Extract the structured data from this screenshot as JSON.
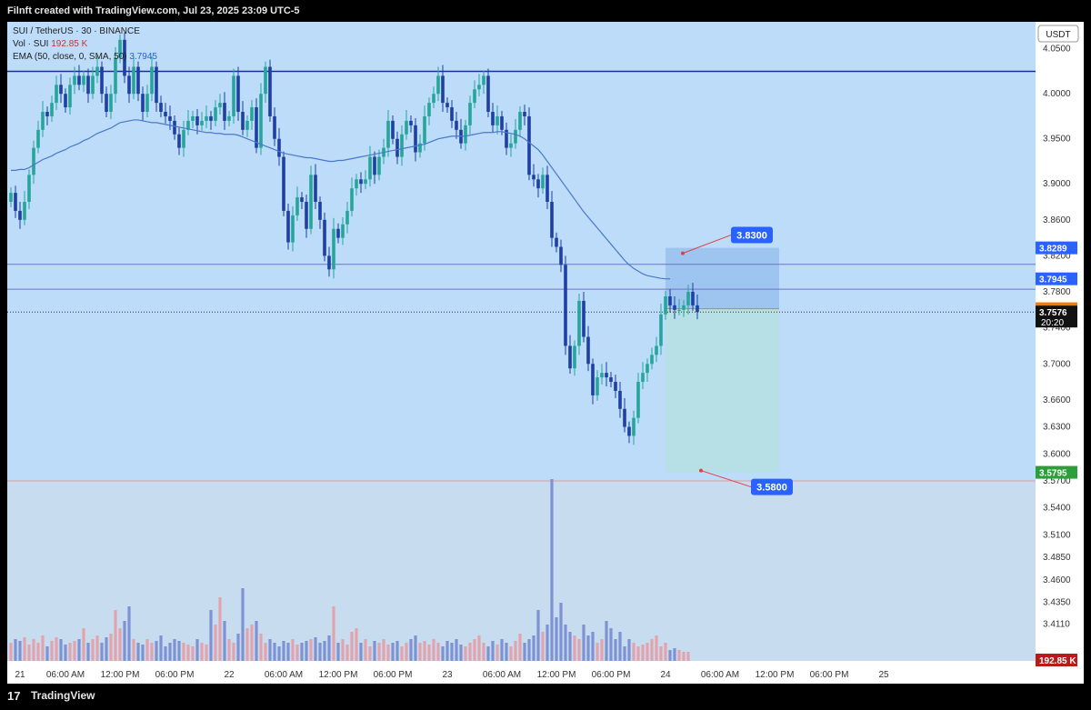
{
  "header": {
    "text": "Filnft created with TradingView.com, Jul 23, 2025 23:09 UTC-5"
  },
  "footer": {
    "brand": "TradingView",
    "logo_text": "17"
  },
  "legend": {
    "symbol": "SUI / TetherUS · 30 · BINANCE",
    "vol_label": "Vol · SUI",
    "vol_value": "192.85 K",
    "ema_label": "EMA (50, close, 0, SMA, 50)",
    "ema_value": "3.7945"
  },
  "colors": {
    "background_upper": "#bcdcfa",
    "background_lower": "#c8dcef",
    "candle_up": "#26a69a",
    "candle_down": "#1e3fa3",
    "ema": "#4a78c8",
    "vol_up": "#e2a3ad",
    "vol_down": "#7d93d4",
    "resistance": "#1a2f8a",
    "target_zone": "#9ec4f0",
    "stop_zone": "#b7dfe6"
  },
  "chart_data": {
    "type": "candlestick",
    "currency_label": "USDT",
    "ylim": [
      3.37,
      4.08
    ],
    "price_ticks": [
      4.05,
      4.0,
      3.95,
      3.9,
      3.86,
      3.82,
      3.78,
      3.74,
      3.7,
      3.66,
      3.63,
      3.6,
      3.57,
      3.54,
      3.51,
      3.485,
      3.46,
      3.435,
      3.411
    ],
    "price_tick_labels": [
      "4.0500",
      "4.0000",
      "3.9500",
      "3.9000",
      "3.8600",
      "3.8200",
      "3.7800",
      "3.7400",
      "3.7000",
      "3.6600",
      "3.6300",
      "3.6000",
      "3.5700",
      "3.5400",
      "3.5100",
      "3.4850",
      "3.4600",
      "3.4350",
      "3.4110"
    ],
    "time_labels": [
      "21",
      "06:00 AM",
      "12:00 PM",
      "06:00 PM",
      "22",
      "06:00 AM",
      "12:00 PM",
      "06:00 PM",
      "23",
      "06:00 AM",
      "12:00 PM",
      "06:00 PM",
      "24",
      "06:00 AM",
      "12:00 PM",
      "06:00 PM",
      "25"
    ],
    "time_label_index": [
      2,
      12,
      24,
      36,
      48,
      60,
      72,
      84,
      96,
      108,
      120,
      132,
      144,
      156,
      168,
      180,
      192
    ],
    "resistance_level": 4.025,
    "horizontal_lines": [
      3.8106,
      3.7829
    ],
    "current_price_line": 3.7576,
    "position": {
      "entry": 3.7613,
      "target": 3.8289,
      "stop": 3.5795,
      "target_callout": "3.8300",
      "stop_callout": "3.5800",
      "start_index": 144,
      "end_index": 169
    },
    "axis_badges": [
      {
        "label": "3.8289",
        "price": 3.8289,
        "color": "#2962ff"
      },
      {
        "label": "3.7945",
        "price": 3.7945,
        "color": "#2962ff"
      },
      {
        "label": "3.7613",
        "price": 3.7613,
        "color": "#f57c00"
      },
      {
        "label": "3.7576",
        "price": 3.7576,
        "color": "#111111",
        "sub": "20:20"
      },
      {
        "label": "3.5795",
        "price": 3.5795,
        "color": "#2e9e3b"
      },
      {
        "label": "192.85 K",
        "price": 3.371,
        "color": "#b71c1c"
      }
    ],
    "closes": [
      3.89,
      3.87,
      3.86,
      3.88,
      3.91,
      3.94,
      3.96,
      3.98,
      3.975,
      3.99,
      4.01,
      4.0,
      3.985,
      4.01,
      4.02,
      4.01,
      4.02,
      4.0,
      4.02,
      4.03,
      4.0,
      3.98,
      4.0,
      4.04,
      4.06,
      4.02,
      4.0,
      4.03,
      4.0,
      3.98,
      4.0,
      4.03,
      3.99,
      3.98,
      3.975,
      3.97,
      3.955,
      3.94,
      3.96,
      3.97,
      3.975,
      3.965,
      3.97,
      3.975,
      3.97,
      3.985,
      3.99,
      3.97,
      3.975,
      4.02,
      3.98,
      3.96,
      3.97,
      3.985,
      3.94,
      4.0,
      4.03,
      3.975,
      3.95,
      3.93,
      3.87,
      3.835,
      3.865,
      3.885,
      3.88,
      3.85,
      3.91,
      3.88,
      3.86,
      3.82,
      3.805,
      3.85,
      3.84,
      3.855,
      3.87,
      3.895,
      3.905,
      3.9,
      3.905,
      3.93,
      3.91,
      3.93,
      3.94,
      3.97,
      3.95,
      3.93,
      3.955,
      3.97,
      3.965,
      3.935,
      3.945,
      3.975,
      3.99,
      4.0,
      4.02,
      3.99,
      3.985,
      3.97,
      3.96,
      3.945,
      3.965,
      3.99,
      4.005,
      4.01,
      4.02,
      3.98,
      3.965,
      3.975,
      3.96,
      3.94,
      3.945,
      3.96,
      3.98,
      3.975,
      3.91,
      3.905,
      3.895,
      3.91,
      3.88,
      3.84,
      3.83,
      3.81,
      3.72,
      3.695,
      3.72,
      3.77,
      3.73,
      3.7,
      3.665,
      3.685,
      3.69,
      3.685,
      3.68,
      3.67,
      3.65,
      3.63,
      3.62,
      3.64,
      3.68,
      3.69,
      3.7,
      3.71,
      3.72,
      3.755,
      3.775,
      3.765,
      3.76,
      3.76,
      3.765,
      3.78,
      3.765,
      3.7576
    ],
    "volume_max": 1.0,
    "volumes": [
      0.1,
      0.12,
      0.11,
      0.13,
      0.09,
      0.12,
      0.1,
      0.14,
      0.08,
      0.11,
      0.13,
      0.12,
      0.09,
      0.1,
      0.11,
      0.12,
      0.18,
      0.1,
      0.12,
      0.14,
      0.1,
      0.13,
      0.15,
      0.28,
      0.18,
      0.22,
      0.3,
      0.12,
      0.1,
      0.09,
      0.12,
      0.1,
      0.11,
      0.14,
      0.08,
      0.1,
      0.12,
      0.11,
      0.1,
      0.09,
      0.08,
      0.12,
      0.1,
      0.09,
      0.28,
      0.2,
      0.35,
      0.22,
      0.12,
      0.1,
      0.15,
      0.4,
      0.18,
      0.2,
      0.22,
      0.15,
      0.1,
      0.12,
      0.1,
      0.08,
      0.11,
      0.1,
      0.12,
      0.09,
      0.1,
      0.11,
      0.12,
      0.13,
      0.1,
      0.11,
      0.14,
      0.3,
      0.1,
      0.12,
      0.09,
      0.16,
      0.18,
      0.1,
      0.12,
      0.08,
      0.11,
      0.1,
      0.12,
      0.09,
      0.1,
      0.11,
      0.08,
      0.1,
      0.12,
      0.14,
      0.1,
      0.11,
      0.09,
      0.12,
      0.1,
      0.08,
      0.11,
      0.1,
      0.12,
      0.09,
      0.08,
      0.1,
      0.12,
      0.14,
      0.1,
      0.08,
      0.11,
      0.09,
      0.12,
      0.1,
      0.08,
      0.11,
      0.15,
      0.1,
      0.12,
      0.14,
      0.28,
      0.16,
      0.2,
      1.0,
      0.24,
      0.32,
      0.2,
      0.16,
      0.14,
      0.12,
      0.2,
      0.14,
      0.16,
      0.1,
      0.12,
      0.22,
      0.18,
      0.12,
      0.16,
      0.08,
      0.12,
      0.1,
      0.08,
      0.09,
      0.1,
      0.12,
      0.14,
      0.08,
      0.1,
      0.06,
      0.07,
      0.06,
      0.05,
      0.05
    ],
    "ema_values": [
      3.915,
      3.915,
      3.916,
      3.916,
      3.918,
      3.921,
      3.924,
      3.927,
      3.929,
      3.931,
      3.934,
      3.936,
      3.938,
      3.941,
      3.943,
      3.945,
      3.948,
      3.95,
      3.953,
      3.956,
      3.958,
      3.96,
      3.962,
      3.965,
      3.968,
      3.969,
      3.97,
      3.971,
      3.971,
      3.97,
      3.969,
      3.968,
      3.968,
      3.967,
      3.966,
      3.965,
      3.964,
      3.963,
      3.962,
      3.961,
      3.96,
      3.959,
      3.958,
      3.957,
      3.957,
      3.956,
      3.956,
      3.955,
      3.955,
      3.955,
      3.954,
      3.952,
      3.95,
      3.948,
      3.946,
      3.944,
      3.942,
      3.94,
      3.938,
      3.936,
      3.934,
      3.933,
      3.932,
      3.931,
      3.93,
      3.929,
      3.929,
      3.928,
      3.927,
      3.926,
      3.925,
      3.925,
      3.926,
      3.926,
      3.927,
      3.928,
      3.929,
      3.93,
      3.931,
      3.932,
      3.933,
      3.934,
      3.935,
      3.936,
      3.937,
      3.938,
      3.939,
      3.94,
      3.941,
      3.942,
      3.943,
      3.944,
      3.946,
      3.948,
      3.95,
      3.951,
      3.952,
      3.953,
      3.953,
      3.953,
      3.953,
      3.954,
      3.955,
      3.956,
      3.957,
      3.957,
      3.957,
      3.958,
      3.958,
      3.957,
      3.956,
      3.955,
      3.953,
      3.95,
      3.946,
      3.942,
      3.938,
      3.932,
      3.925,
      3.918,
      3.911,
      3.904,
      3.897,
      3.89,
      3.883,
      3.876,
      3.869,
      3.863,
      3.857,
      3.851,
      3.845,
      3.839,
      3.833,
      3.827,
      3.821,
      3.815,
      3.81,
      3.806,
      3.803,
      3.8,
      3.798,
      3.797,
      3.796,
      3.795,
      3.7945,
      3.7945
    ]
  }
}
